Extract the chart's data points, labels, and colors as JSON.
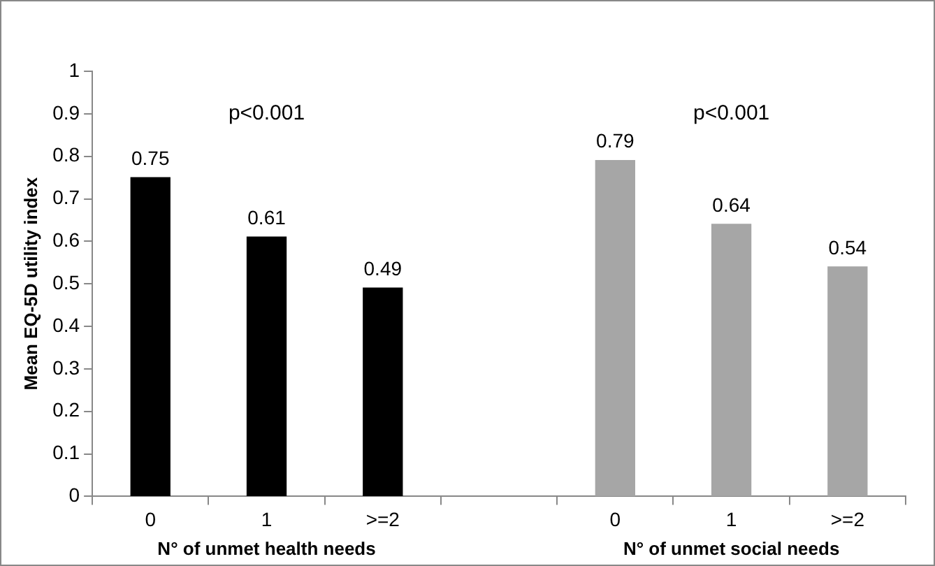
{
  "chart_data": {
    "type": "bar",
    "ylabel": "Mean EQ-5D utility index",
    "categories": [
      "0",
      "1",
      ">=2",
      null,
      "0",
      "1",
      ">=2"
    ],
    "values": [
      0.75,
      0.61,
      0.49,
      null,
      0.79,
      0.64,
      0.54
    ],
    "colors": [
      "#000000",
      "#000000",
      "#000000",
      "#000000",
      "#a6a6a6",
      "#a6a6a6",
      "#a6a6a6"
    ],
    "ylim": [
      0,
      1
    ],
    "yticks": [
      0,
      0.1,
      0.2,
      0.3,
      0.4,
      0.5,
      0.6,
      0.7,
      0.8,
      0.9,
      1
    ],
    "data_labels": true,
    "grid": false,
    "legend": false,
    "annotations": [
      "p<0.001",
      "p<0.001",
      "N° of unmet health needs",
      "N° of unmet social needs"
    ]
  }
}
